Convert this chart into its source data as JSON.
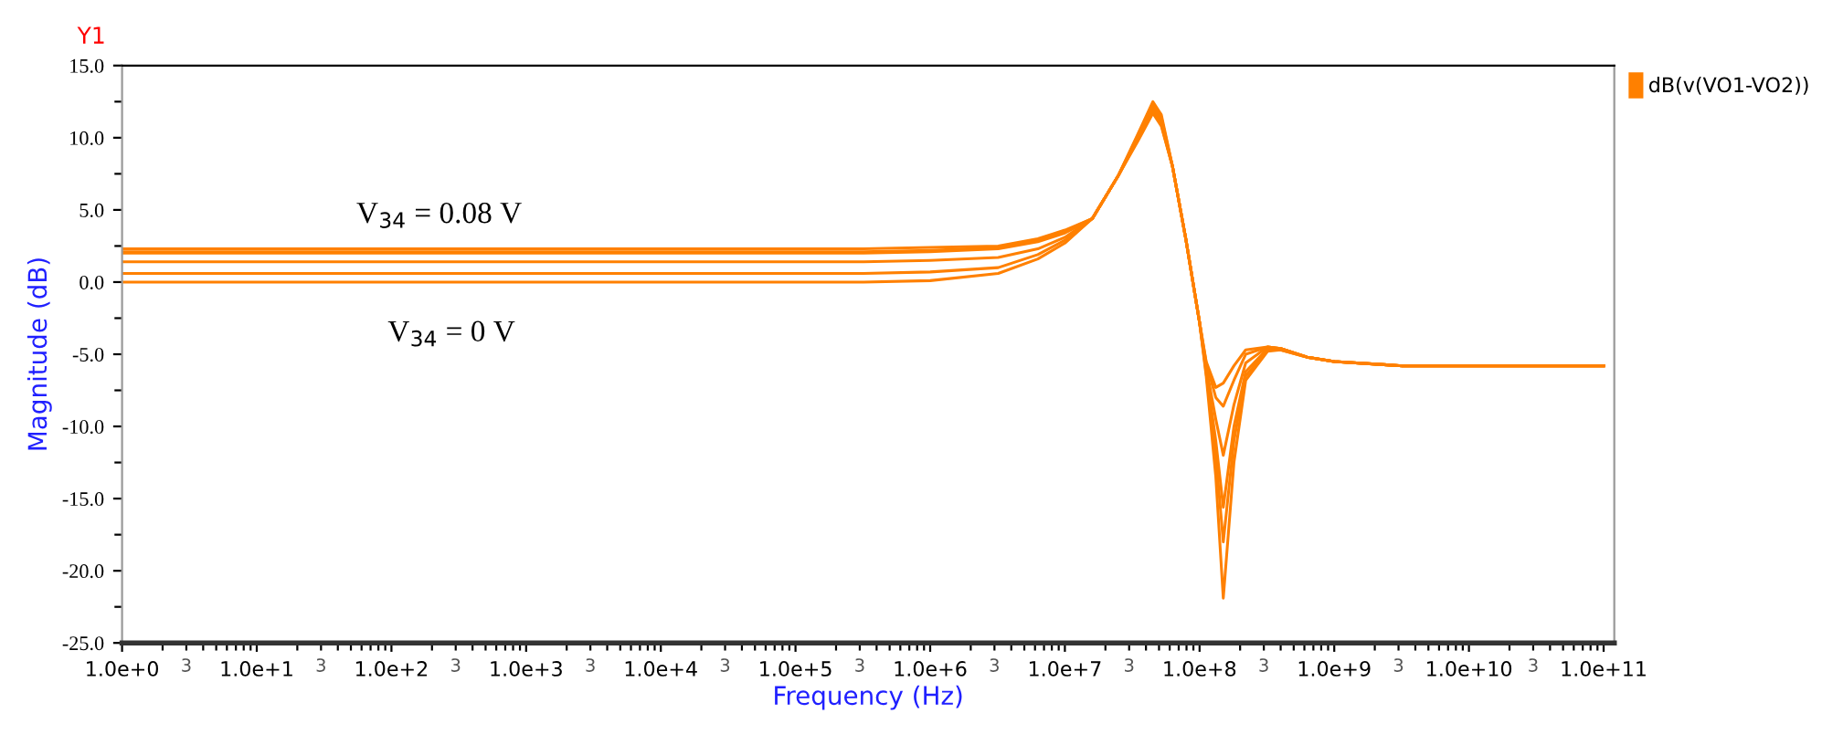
{
  "chart_data": {
    "type": "line",
    "xlabel": "Frequency (Hz)",
    "ylabel": "Magnitude (dB)",
    "annotations": [
      "Y1",
      "V$_{34}$ = 0.08 V",
      "V$_{34}$ = 0 V",
      "3",
      "3",
      "3",
      "3",
      "3",
      "3",
      "3",
      "3",
      "3",
      "3",
      "3"
    ],
    "log": "x",
    "grid": false,
    "legend": "top right",
    "marker": "none",
    "line_style": "solid",
    "xlim": [
      1,
      120000000000.0
    ],
    "ylim": [
      -25,
      15
    ],
    "yticks": [
      {
        "value": -25,
        "label": "-25.0"
      },
      {
        "value": -22.5,
        "label": null
      },
      {
        "value": -20,
        "label": "-20.0"
      },
      {
        "value": -17.5,
        "label": null
      },
      {
        "value": -15,
        "label": "-15.0"
      },
      {
        "value": -12.5,
        "label": null
      },
      {
        "value": -10,
        "label": "-10.0"
      },
      {
        "value": -7.5,
        "label": null
      },
      {
        "value": -5,
        "label": "-5.0"
      },
      {
        "value": -2.5,
        "label": null
      },
      {
        "value": 0,
        "label": "0.0"
      },
      {
        "value": 2.5,
        "label": null
      },
      {
        "value": 5,
        "label": "5.0"
      },
      {
        "value": 7.5,
        "label": null
      },
      {
        "value": 10,
        "label": "10.0"
      },
      {
        "value": 12.5,
        "label": null
      },
      {
        "value": 15,
        "label": "15.0"
      }
    ],
    "xticks": [
      {
        "value": 1,
        "label": "1.0e+0"
      },
      {
        "value": 10,
        "label": "1.0e+1"
      },
      {
        "value": 100,
        "label": "1.0e+2"
      },
      {
        "value": 1000.0,
        "label": "1.0e+3"
      },
      {
        "value": 10000.0,
        "label": "1.0e+4"
      },
      {
        "value": 100000.0,
        "label": "1.0e+5"
      },
      {
        "value": 1000000.0,
        "label": "1.0e+6"
      },
      {
        "value": 10000000.0,
        "label": "1.0e+7"
      },
      {
        "value": 100000000.0,
        "label": "1.0e+8"
      },
      {
        "value": 1000000000.0,
        "label": "1.0e+9"
      },
      {
        "value": 10000000000.0,
        "label": "1.0e+10"
      },
      {
        "value": 100000000000.0,
        "label": "1.0e+11"
      },
      {
        "value": 3,
        "label": null
      },
      {
        "value": 30,
        "label": null
      },
      {
        "value": 300,
        "label": null
      },
      {
        "value": 3000.0,
        "label": null
      },
      {
        "value": 30000.0,
        "label": null
      },
      {
        "value": 300000.0,
        "label": null
      },
      {
        "value": 3000000.0,
        "label": null
      },
      {
        "value": 30000000.0,
        "label": null
      },
      {
        "value": 300000000.0,
        "label": null
      },
      {
        "value": 3000000000.0,
        "label": null
      },
      {
        "value": 30000000000.0,
        "label": null
      },
      {
        "value": 2,
        "label": null
      },
      {
        "value": 4,
        "label": null
      },
      {
        "value": 5,
        "label": null
      },
      {
        "value": 6,
        "label": null
      },
      {
        "value": 7,
        "label": null
      },
      {
        "value": 8,
        "label": null
      },
      {
        "value": 9,
        "label": null
      },
      {
        "value": 20,
        "label": null
      },
      {
        "value": 40,
        "label": null
      },
      {
        "value": 50,
        "label": null
      },
      {
        "value": 60,
        "label": null
      },
      {
        "value": 70,
        "label": null
      },
      {
        "value": 80,
        "label": null
      },
      {
        "value": 90,
        "label": null
      },
      {
        "value": 200,
        "label": null
      },
      {
        "value": 400,
        "label": null
      },
      {
        "value": 500,
        "label": null
      },
      {
        "value": 600,
        "label": null
      },
      {
        "value": 700,
        "label": null
      },
      {
        "value": 800,
        "label": null
      },
      {
        "value": 900,
        "label": null
      },
      {
        "value": 2000.0,
        "label": null
      },
      {
        "value": 4000.0,
        "label": null
      },
      {
        "value": 5000.0,
        "label": null
      },
      {
        "value": 6000.0,
        "label": null
      },
      {
        "value": 7000.0,
        "label": null
      },
      {
        "value": 8000.0,
        "label": null
      },
      {
        "value": 9000.0,
        "label": null
      },
      {
        "value": 20000.0,
        "label": null
      },
      {
        "value": 40000.0,
        "label": null
      },
      {
        "value": 50000.0,
        "label": null
      },
      {
        "value": 60000.0,
        "label": null
      },
      {
        "value": 70000.0,
        "label": null
      },
      {
        "value": 80000.0,
        "label": null
      },
      {
        "value": 90000.0,
        "label": null
      },
      {
        "value": 200000.0,
        "label": null
      },
      {
        "value": 400000.0,
        "label": null
      },
      {
        "value": 500000.0,
        "label": null
      },
      {
        "value": 600000.0,
        "label": null
      },
      {
        "value": 700000.0,
        "label": null
      },
      {
        "value": 800000.0,
        "label": null
      },
      {
        "value": 900000.0,
        "label": null
      },
      {
        "value": 2000000.0,
        "label": null
      },
      {
        "value": 4000000.0,
        "label": null
      },
      {
        "value": 5000000.0,
        "label": null
      },
      {
        "value": 6000000.0,
        "label": null
      },
      {
        "value": 7000000.0,
        "label": null
      },
      {
        "value": 8000000.0,
        "label": null
      },
      {
        "value": 9000000.0,
        "label": null
      },
      {
        "value": 20000000.0,
        "label": null
      },
      {
        "value": 40000000.0,
        "label": null
      },
      {
        "value": 50000000.0,
        "label": null
      },
      {
        "value": 60000000.0,
        "label": null
      },
      {
        "value": 70000000.0,
        "label": null
      },
      {
        "value": 80000000.0,
        "label": null
      },
      {
        "value": 90000000.0,
        "label": null
      },
      {
        "value": 200000000.0,
        "label": null
      },
      {
        "value": 400000000.0,
        "label": null
      },
      {
        "value": 500000000.0,
        "label": null
      },
      {
        "value": 600000000.0,
        "label": null
      },
      {
        "value": 700000000.0,
        "label": null
      },
      {
        "value": 800000000.0,
        "label": null
      },
      {
        "value": 900000000.0,
        "label": null
      },
      {
        "value": 2000000000.0,
        "label": null
      },
      {
        "value": 4000000000.0,
        "label": null
      },
      {
        "value": 5000000000.0,
        "label": null
      },
      {
        "value": 6000000000.0,
        "label": null
      },
      {
        "value": 7000000000.0,
        "label": null
      },
      {
        "value": 8000000000.0,
        "label": null
      },
      {
        "value": 9000000000.0,
        "label": null
      },
      {
        "value": 20000000000.0,
        "label": null
      },
      {
        "value": 40000000000.0,
        "label": null
      },
      {
        "value": 50000000000.0,
        "label": null
      },
      {
        "value": 60000000000.0,
        "label": null
      },
      {
        "value": 70000000000.0,
        "label": null
      },
      {
        "value": 80000000000.0,
        "label": null
      },
      {
        "value": 90000000000.0,
        "label": null
      }
    ],
    "x": [
      1,
      320000.0,
      1000000.0,
      3200000.0,
      6300000.0,
      10000000.0,
      16000000.0,
      25000000.0,
      35000000.0,
      45000000.0,
      52000000.0,
      63000000.0,
      79000000.0,
      100000000.0,
      112000000.0,
      132000000.0,
      150000000.0,
      180000000.0,
      220000000.0,
      320000000.0,
      400000000.0,
      630000000.0,
      1000000000.0,
      3200000000.0,
      100000000000.0
    ],
    "series": [
      {
        "name": "dB(v(VO1-VO2))",
        "color": "#ff8000",
        "values": [
          0,
          0,
          0.1,
          0.6,
          1.6,
          2.7,
          4.4,
          7.4,
          10.3,
          12.5,
          11.6,
          8.0,
          3.0,
          -2.8,
          -6.5,
          -13.5,
          -21.9,
          -12.5,
          -6.8,
          -4.8,
          -4.7,
          -5.2,
          -5.5,
          -5.8,
          -5.8
        ]
      },
      {
        "color": "#ff8000",
        "values": [
          0.6,
          0.6,
          0.7,
          1.0,
          1.9,
          2.9,
          4.4,
          7.4,
          10.2,
          12.3,
          11.4,
          8.0,
          3.0,
          -2.8,
          -6.3,
          -12.0,
          -18.0,
          -11.0,
          -6.5,
          -4.7,
          -4.7,
          -5.2,
          -5.5,
          -5.8,
          -5.8
        ]
      },
      {
        "color": "#ff8000",
        "values": [
          1.4,
          1.4,
          1.5,
          1.7,
          2.3,
          3.1,
          4.4,
          7.4,
          10.1,
          12.1,
          11.2,
          8.0,
          3.0,
          -2.8,
          -6.1,
          -11.0,
          -15.6,
          -10.0,
          -6.2,
          -4.6,
          -4.6,
          -5.2,
          -5.5,
          -5.8,
          -5.8
        ]
      },
      {
        "color": "#ff8000",
        "values": [
          2.0,
          2.0,
          2.1,
          2.3,
          2.8,
          3.4,
          4.4,
          7.4,
          10.0,
          11.9,
          11.0,
          8.0,
          3.0,
          -2.8,
          -5.9,
          -9.5,
          -12.0,
          -8.5,
          -5.6,
          -4.5,
          -4.6,
          -5.2,
          -5.5,
          -5.8,
          -5.8
        ]
      },
      {
        "color": "#ff8000",
        "values": [
          2.1,
          2.1,
          2.2,
          2.4,
          2.9,
          3.5,
          4.4,
          7.4,
          9.9,
          11.8,
          10.9,
          8.0,
          3.0,
          -2.8,
          -5.6,
          -8.0,
          -8.6,
          -6.8,
          -5.0,
          -4.5,
          -4.6,
          -5.2,
          -5.5,
          -5.8,
          -5.8
        ]
      },
      {
        "color": "#ff8000",
        "values": [
          2.3,
          2.3,
          2.4,
          2.5,
          3.0,
          3.6,
          4.4,
          7.4,
          9.8,
          11.7,
          10.8,
          8.0,
          3.0,
          -2.8,
          -5.5,
          -7.3,
          -7.0,
          -5.8,
          -4.7,
          -4.5,
          -4.6,
          -5.2,
          -5.5,
          -5.8,
          -5.8
        ]
      }
    ]
  }
}
